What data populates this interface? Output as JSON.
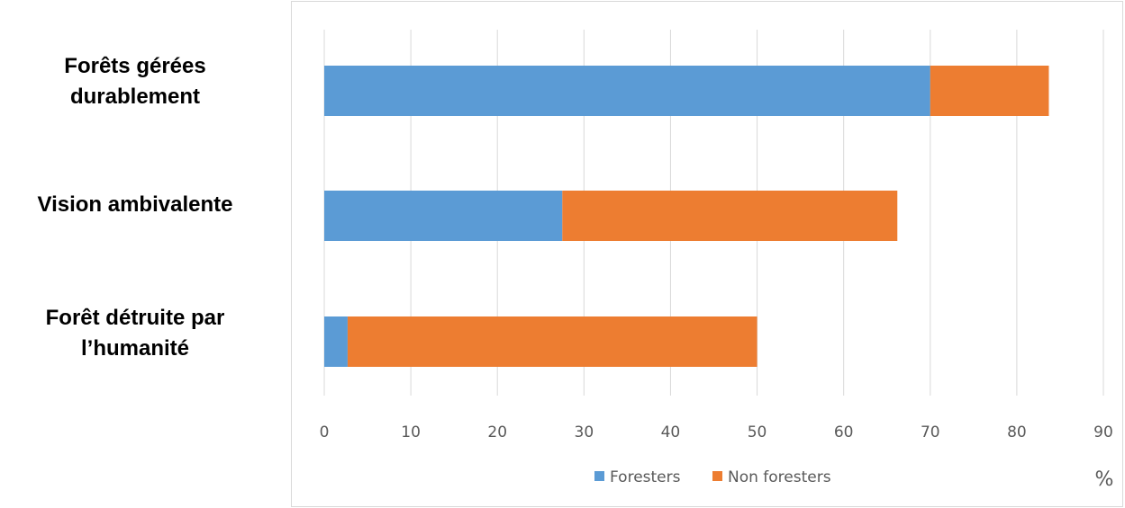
{
  "chart_data": {
    "type": "bar",
    "orientation": "horizontal",
    "stacked": true,
    "categories": [
      "Forêts gérées\ndurablement",
      "Vision ambivalente",
      "Forêt détruite par\nl’humanité"
    ],
    "series": [
      {
        "name": "Foresters",
        "values": [
          70,
          27.5,
          2.7
        ],
        "color": "#5B9BD5"
      },
      {
        "name": "Non foresters",
        "values": [
          13.7,
          38.7,
          47.3
        ],
        "color": "#ED7D31"
      }
    ],
    "xlim": [
      0,
      90
    ],
    "xticks": [
      "0",
      "10",
      "20",
      "30",
      "40",
      "50",
      "60",
      "70",
      "80",
      "90"
    ],
    "x_unit_label": "%",
    "grid": "vertical",
    "legend_position": "bottom"
  }
}
